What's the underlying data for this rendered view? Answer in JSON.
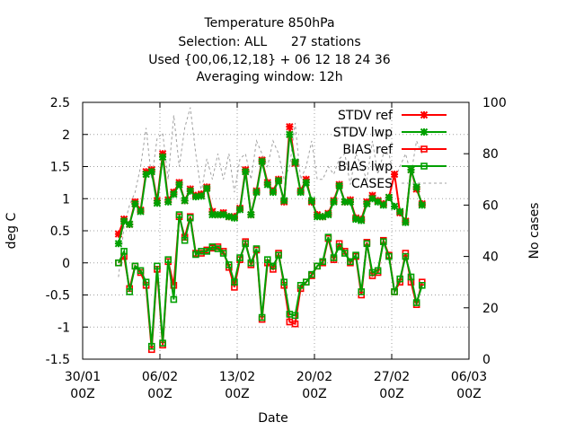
{
  "chart_data": {
    "type": "line",
    "title_lines": [
      "Temperature 850hPa",
      "Selection: ALL      27 stations",
      "Used {00,06,12,18} + 06 12 18 24 36",
      "Averaging window: 12h"
    ],
    "xlabel": "Date",
    "ylabel": "deg C",
    "y2label": "No cases",
    "x_domain": [
      "2003-01-30T00:00",
      "2003-03-06T00:00"
    ],
    "x_tick_dates": [
      "2003-01-30T00:00",
      "2003-02-06T00:00",
      "2003-02-13T00:00",
      "2003-02-20T00:00",
      "2003-02-27T00:00",
      "2003-03-06T00:00"
    ],
    "x_tick_labels": [
      [
        "30/01",
        "00Z"
      ],
      [
        "06/02",
        "00Z"
      ],
      [
        "13/02",
        "00Z"
      ],
      [
        "20/02",
        "00Z"
      ],
      [
        "27/02",
        "00Z"
      ],
      [
        "06/03",
        "00Z"
      ]
    ],
    "ylim": [
      -1.5,
      2.5
    ],
    "y_ticks": [
      "-1.5",
      "-1",
      "-0.5",
      "0",
      "0.5",
      "1",
      "1.5",
      "2",
      "2.5"
    ],
    "y2lim": [
      0,
      100
    ],
    "y2_ticks": [
      "0",
      "20",
      "40",
      "60",
      "80",
      "100"
    ],
    "grid": true,
    "legend_position": "top-right",
    "x_dates": [
      "2003-02-02T06:00",
      "2003-02-02T18:00",
      "2003-02-03T06:00",
      "2003-02-03T18:00",
      "2003-02-04T06:00",
      "2003-02-04T18:00",
      "2003-02-05T06:00",
      "2003-02-05T18:00",
      "2003-02-06T06:00",
      "2003-02-06T18:00",
      "2003-02-07T06:00",
      "2003-02-07T18:00",
      "2003-02-08T06:00",
      "2003-02-08T18:00",
      "2003-02-09T06:00",
      "2003-02-09T18:00",
      "2003-02-10T06:00",
      "2003-02-10T18:00",
      "2003-02-11T06:00",
      "2003-02-11T18:00",
      "2003-02-12T06:00",
      "2003-02-12T18:00",
      "2003-02-13T06:00",
      "2003-02-13T18:00",
      "2003-02-14T06:00",
      "2003-02-14T18:00",
      "2003-02-15T06:00",
      "2003-02-15T18:00",
      "2003-02-16T06:00",
      "2003-02-16T18:00",
      "2003-02-17T06:00",
      "2003-02-17T18:00",
      "2003-02-18T06:00",
      "2003-02-18T18:00",
      "2003-02-19T06:00",
      "2003-02-19T18:00",
      "2003-02-20T06:00",
      "2003-02-20T18:00",
      "2003-02-21T06:00",
      "2003-02-21T18:00",
      "2003-02-22T06:00",
      "2003-02-22T18:00",
      "2003-02-23T06:00",
      "2003-02-23T18:00",
      "2003-02-24T06:00",
      "2003-02-24T18:00",
      "2003-02-25T06:00",
      "2003-02-25T18:00",
      "2003-02-26T06:00",
      "2003-02-26T18:00",
      "2003-02-27T06:00",
      "2003-02-27T18:00",
      "2003-02-28T06:00",
      "2003-02-28T18:00",
      "2003-03-01T06:00",
      "2003-03-01T18:00"
    ],
    "series": [
      {
        "name": "STDV ref",
        "color": "#ff0000",
        "marker": "star",
        "dash": "none",
        "axis": "y1",
        "values": [
          0.45,
          0.68,
          0.6,
          0.95,
          0.82,
          1.42,
          1.45,
          0.97,
          1.7,
          0.98,
          1.1,
          1.25,
          0.97,
          1.15,
          1.05,
          1.07,
          1.18,
          0.8,
          0.75,
          0.78,
          0.72,
          0.72,
          0.85,
          1.45,
          0.75,
          1.12,
          1.6,
          1.25,
          1.12,
          1.3,
          0.95,
          2.12,
          1.55,
          1.12,
          1.3,
          0.95,
          0.75,
          0.72,
          0.77,
          0.97,
          1.22,
          0.95,
          0.98,
          0.7,
          0.68,
          0.95,
          1.05,
          0.97,
          0.92,
          1.02,
          1.38,
          0.78,
          0.65,
          1.45,
          1.15,
          0.92
        ]
      },
      {
        "name": "STDV lwp",
        "color": "#00a000",
        "marker": "star",
        "dash": "none",
        "axis": "y1",
        "values": [
          0.3,
          0.65,
          0.6,
          0.92,
          0.8,
          1.38,
          1.42,
          0.93,
          1.65,
          0.95,
          1.07,
          1.22,
          0.97,
          1.12,
          1.03,
          1.04,
          1.16,
          0.75,
          0.75,
          0.75,
          0.72,
          0.7,
          0.83,
          1.42,
          0.75,
          1.1,
          1.58,
          1.22,
          1.1,
          1.28,
          0.97,
          2.0,
          1.57,
          1.1,
          1.25,
          0.97,
          0.72,
          0.72,
          0.75,
          0.95,
          1.2,
          0.95,
          0.95,
          0.68,
          0.66,
          0.92,
          1.0,
          0.95,
          0.9,
          1.02,
          0.88,
          0.8,
          0.63,
          1.45,
          1.18,
          0.9
        ]
      },
      {
        "name": "BIAS ref",
        "color": "#ff0000",
        "marker": "square",
        "dash": "none",
        "axis": "y1",
        "values": [
          0.0,
          0.1,
          -0.4,
          -0.05,
          -0.15,
          -0.35,
          -1.35,
          -0.1,
          -1.28,
          0.02,
          -0.35,
          0.72,
          0.4,
          0.72,
          0.15,
          0.15,
          0.2,
          0.23,
          0.25,
          0.18,
          -0.07,
          -0.38,
          0.05,
          0.33,
          -0.03,
          0.2,
          -0.88,
          0.0,
          -0.1,
          0.15,
          -0.35,
          -0.92,
          -0.95,
          -0.4,
          -0.3,
          -0.2,
          -0.05,
          0.0,
          0.38,
          0.05,
          0.3,
          0.18,
          0.0,
          0.1,
          -0.5,
          0.32,
          -0.2,
          -0.15,
          0.35,
          0.12,
          -0.45,
          -0.3,
          0.15,
          -0.3,
          -0.65,
          -0.3
        ]
      },
      {
        "name": "BIAS lwp",
        "color": "#00a000",
        "marker": "square",
        "dash": "none",
        "axis": "y1",
        "values": [
          0.0,
          0.18,
          -0.45,
          -0.05,
          -0.12,
          -0.3,
          -1.3,
          -0.05,
          -1.25,
          0.05,
          -0.57,
          0.75,
          0.35,
          0.7,
          0.13,
          0.18,
          0.18,
          0.25,
          0.22,
          0.15,
          -0.03,
          -0.3,
          0.08,
          0.3,
          0.0,
          0.22,
          -0.85,
          0.05,
          -0.05,
          0.12,
          -0.3,
          -0.8,
          -0.82,
          -0.35,
          -0.3,
          -0.18,
          -0.05,
          0.02,
          0.4,
          0.08,
          0.25,
          0.15,
          0.02,
          0.12,
          -0.45,
          0.3,
          -0.15,
          -0.12,
          0.33,
          0.1,
          -0.45,
          -0.25,
          0.1,
          -0.22,
          -0.62,
          -0.35
        ]
      },
      {
        "name": "CASES",
        "color": "#a0a0a0",
        "marker": "none",
        "dash": "3,3",
        "axis": "y2",
        "values": [
          32,
          52,
          60,
          65,
          75,
          90,
          70,
          86,
          88,
          70,
          95,
          75,
          90,
          98,
          80,
          65,
          78,
          70,
          80,
          70,
          80,
          65,
          78,
          80,
          70,
          85,
          80,
          75,
          85,
          80,
          70,
          75,
          92,
          70,
          75,
          85,
          70,
          70,
          75,
          72,
          78,
          80,
          68,
          80,
          75,
          70,
          85,
          72,
          80,
          80,
          70,
          75,
          80,
          72,
          85,
          80
        ]
      }
    ]
  }
}
